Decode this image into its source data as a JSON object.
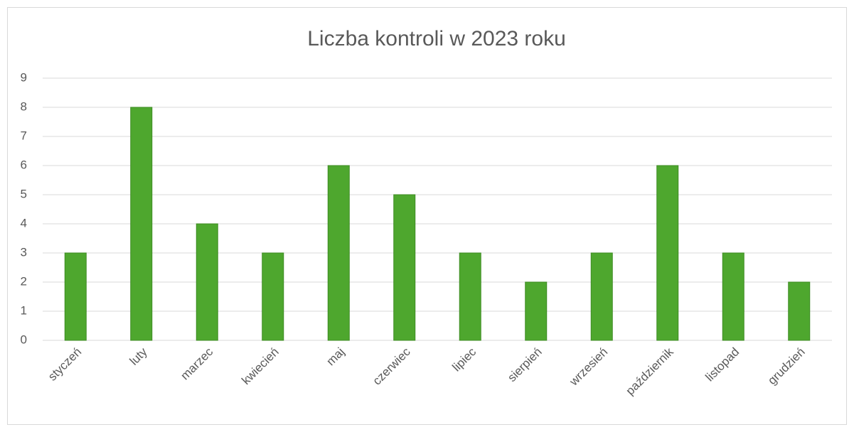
{
  "chart_data": {
    "type": "bar",
    "title": "Liczba kontroli w 2023 roku",
    "categories": [
      "styczeń",
      "luty",
      "marzec",
      "kwiecień",
      "maj",
      "czerwiec",
      "lipiec",
      "sierpień",
      "wrzesień",
      "październik",
      "listopad",
      "grudzień"
    ],
    "values": [
      3,
      8,
      4,
      3,
      6,
      5,
      3,
      2,
      3,
      6,
      3,
      2
    ],
    "color": "#4ea72e",
    "ylim": [
      0,
      9
    ],
    "yticks": [
      0,
      1,
      2,
      3,
      4,
      5,
      6,
      7,
      8,
      9
    ],
    "grid": true
  }
}
